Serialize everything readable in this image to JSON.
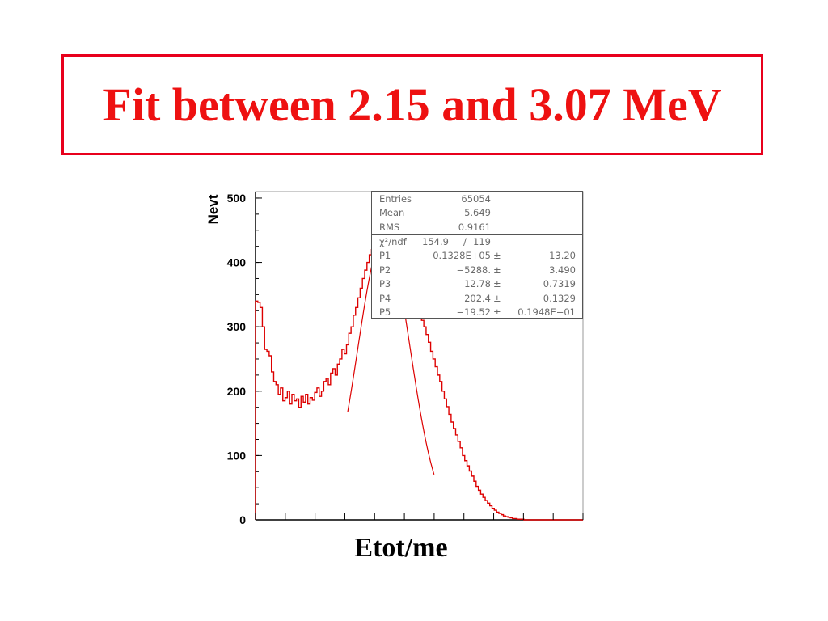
{
  "slide": {
    "title": "Fit between 2.15 and 3.07 MeV"
  },
  "colors": {
    "title": "#ee1111",
    "border": "#e8001c",
    "histogram": "#dd0000",
    "fit": "#dd0000"
  },
  "stats": {
    "entries": {
      "label": "Entries",
      "value": "65054"
    },
    "mean": {
      "label": "Mean",
      "value": "5.649"
    },
    "rms": {
      "label": "RMS",
      "value": "0.9161"
    },
    "chi2": {
      "label": "χ²/ndf",
      "value": "154.9",
      "sep": "/",
      "ndf": "119"
    },
    "params": [
      {
        "label": "P1",
        "value": "0.1328E+05",
        "pm": "±",
        "error": "13.20"
      },
      {
        "label": "P2",
        "value": "−5288.",
        "pm": "±",
        "error": "3.490"
      },
      {
        "label": "P3",
        "value": "12.78",
        "pm": "±",
        "error": "0.7319"
      },
      {
        "label": "P4",
        "value": "202.4",
        "pm": "±",
        "error": "0.1329"
      },
      {
        "label": "P5",
        "value": "−19.52",
        "pm": "±",
        "error": "0.1948E−01"
      }
    ]
  },
  "chart_data": {
    "type": "histogram",
    "title": "",
    "xlabel": "Etot/me",
    "ylabel": "Nevt",
    "ylim": [
      0,
      510
    ],
    "yticks": [
      0,
      100,
      200,
      300,
      400,
      500
    ],
    "grid": false,
    "histogram_values": [
      340,
      338,
      330,
      300,
      265,
      262,
      255,
      230,
      215,
      210,
      195,
      205,
      185,
      190,
      200,
      180,
      195,
      185,
      188,
      175,
      192,
      183,
      195,
      180,
      190,
      186,
      198,
      205,
      192,
      200,
      215,
      220,
      210,
      228,
      235,
      225,
      242,
      250,
      265,
      258,
      272,
      290,
      300,
      318,
      330,
      345,
      360,
      375,
      388,
      400,
      412,
      420,
      430,
      438,
      442,
      450,
      446,
      452,
      448,
      440,
      442,
      435,
      430,
      425,
      418,
      410,
      400,
      390,
      378,
      365,
      352,
      340,
      322,
      310,
      300,
      288,
      276,
      262,
      250,
      238,
      225,
      215,
      200,
      188,
      176,
      164,
      152,
      142,
      132,
      122,
      112,
      100,
      92,
      84,
      76,
      68,
      60,
      52,
      46,
      40,
      35,
      30,
      26,
      22,
      18,
      15,
      12,
      10,
      8,
      6,
      5,
      4,
      3,
      2,
      2,
      1,
      1,
      1,
      0,
      0,
      0,
      0,
      0,
      0,
      0,
      0,
      0,
      0,
      0,
      0,
      0,
      0,
      0,
      0,
      0,
      0,
      0,
      0,
      0,
      0,
      0,
      0,
      0,
      0
    ],
    "fit_range_bins": [
      40,
      78
    ]
  }
}
